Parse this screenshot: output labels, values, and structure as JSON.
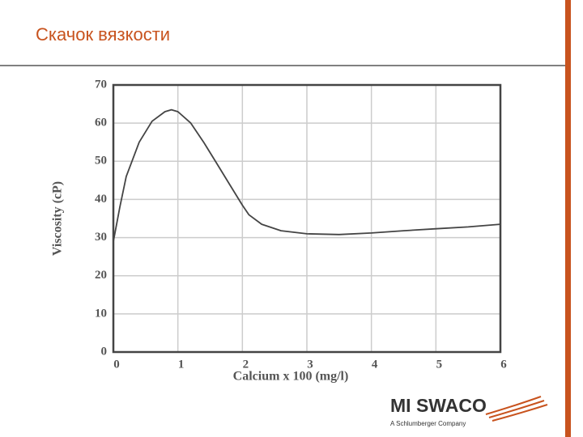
{
  "chart_data": {
    "type": "line",
    "title": "Скачок вязкости",
    "x_label": "Calcium x 100 (mg/l)",
    "y_label": "Viscosity (cP)",
    "x": [
      0,
      0.1,
      0.2,
      0.4,
      0.6,
      0.8,
      0.9,
      1.0,
      1.2,
      1.4,
      1.6,
      1.8,
      2.0,
      2.1,
      2.3,
      2.6,
      3,
      3.5,
      4,
      4.5,
      5,
      5.5,
      6
    ],
    "series": [
      {
        "color": "#444444",
        "values": [
          29,
          38,
          46,
          55,
          60.5,
          63,
          63.5,
          63,
          60,
          55,
          49.5,
          44,
          38.5,
          36,
          33.5,
          31.8,
          31,
          30.8,
          31.2,
          31.8,
          32.3,
          32.8,
          33.5
        ]
      }
    ],
    "xlim": [
      0,
      6
    ],
    "xticks": [
      0,
      1,
      2,
      3,
      4,
      5,
      6
    ],
    "ylim": [
      0,
      70
    ],
    "yticks": [
      0,
      10,
      20,
      30,
      40,
      50,
      60,
      70
    ],
    "grid": true
  },
  "logo": {
    "name": "MI SWACO",
    "tagline": "A Schlumberger Company"
  }
}
